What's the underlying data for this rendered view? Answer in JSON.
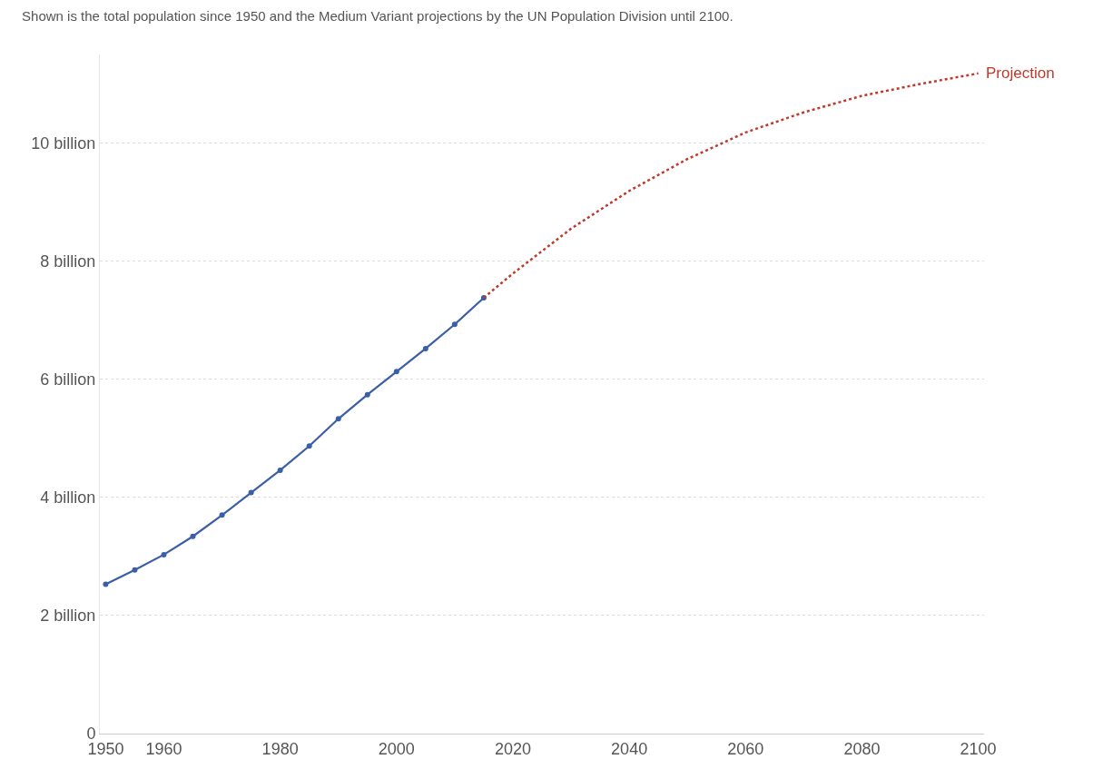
{
  "chart_data": {
    "type": "line",
    "subtitle": "Shown is the total population since 1950 and the Medium Variant projections by the UN Population Division until 2100.",
    "series": [
      {
        "color": "#3b5ea8",
        "marker": "circle",
        "line_style": "solid",
        "x": [
          1950,
          1955,
          1960,
          1965,
          1970,
          1975,
          1980,
          1985,
          1990,
          1995,
          2000,
          2005,
          2010,
          2015
        ],
        "values": [
          2.53,
          2.77,
          3.03,
          3.34,
          3.7,
          4.08,
          4.46,
          4.87,
          5.33,
          5.74,
          6.13,
          6.52,
          6.93,
          7.38
        ]
      },
      {
        "name": "Projection",
        "color": "#c0392b",
        "marker": "none",
        "line_style": "dotted",
        "x": [
          2015,
          2020,
          2030,
          2040,
          2050,
          2060,
          2070,
          2080,
          2090,
          2100
        ],
        "values": [
          7.38,
          7.79,
          8.55,
          9.19,
          9.73,
          10.18,
          10.52,
          10.8,
          11.0,
          11.18
        ]
      }
    ],
    "xlim": [
      1949,
      2101
    ],
    "xticks": [
      1950,
      1960,
      1980,
      2000,
      2020,
      2040,
      2060,
      2080,
      2100
    ],
    "ylim": [
      0,
      11.5
    ],
    "yticks": [
      0,
      {
        "value": 2,
        "label": "2 billion"
      },
      {
        "value": 4,
        "label": "4 billion"
      },
      {
        "value": 6,
        "label": "6 billion"
      },
      {
        "value": 8,
        "label": "8 billion"
      },
      {
        "value": 10,
        "label": "10 billion"
      }
    ],
    "grid": "y",
    "legend": false
  }
}
